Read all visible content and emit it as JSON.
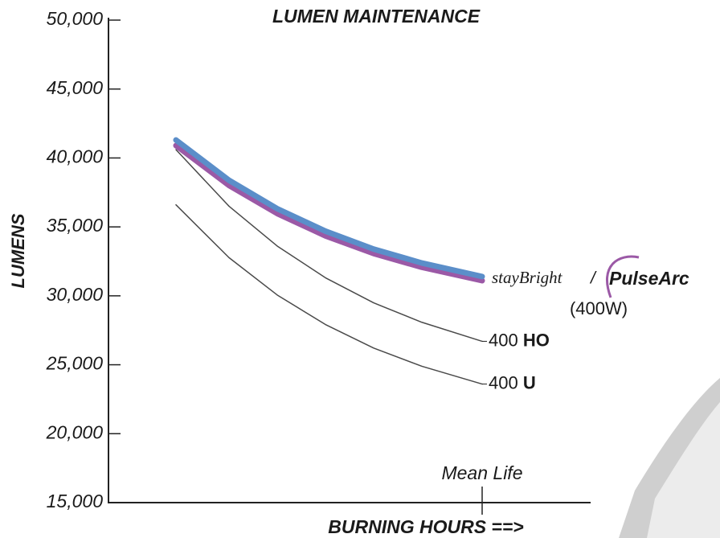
{
  "chart_data": {
    "type": "line",
    "title": "LUMEN MAINTENANCE",
    "y_label": "LUMENS",
    "x_label": "BURNING HOURS ==>",
    "xlim": [
      0,
      100
    ],
    "ylim": [
      15000,
      50000
    ],
    "yticks": [
      {
        "value": 15000,
        "label": "15,000"
      },
      {
        "value": 20000,
        "label": "20,000"
      },
      {
        "value": 25000,
        "label": "25,000"
      },
      {
        "value": 30000,
        "label": "30,000"
      },
      {
        "value": 35000,
        "label": "35,000"
      },
      {
        "value": 40000,
        "label": "40,000"
      },
      {
        "value": 45000,
        "label": "45,000"
      },
      {
        "value": 50000,
        "label": "50,000"
      }
    ],
    "annotation": {
      "text": "Mean Life",
      "x": 77.5
    },
    "x": [
      14,
      25,
      35,
      45,
      55,
      65,
      77.5
    ],
    "series": [
      {
        "name": "400 U",
        "color": "#4a4a4a",
        "values": [
          36600,
          32770,
          30060,
          27920,
          26210,
          24890,
          23600
        ]
      },
      {
        "name": "400 HO",
        "color": "#4a4a4a",
        "values": [
          40600,
          36500,
          33610,
          31310,
          29490,
          28080,
          26700
        ]
      },
      {
        "name": "PulseArc",
        "color": "#9b59a6",
        "values": [
          40900,
          38010,
          35970,
          34350,
          33070,
          32070,
          31100
        ]
      },
      {
        "name": "stayBright",
        "color": "#5b8ec9",
        "values": [
          41300,
          38380,
          36320,
          34690,
          33390,
          32380,
          31400
        ]
      }
    ],
    "logo_separator": "/",
    "logo_note": "(400W)"
  }
}
